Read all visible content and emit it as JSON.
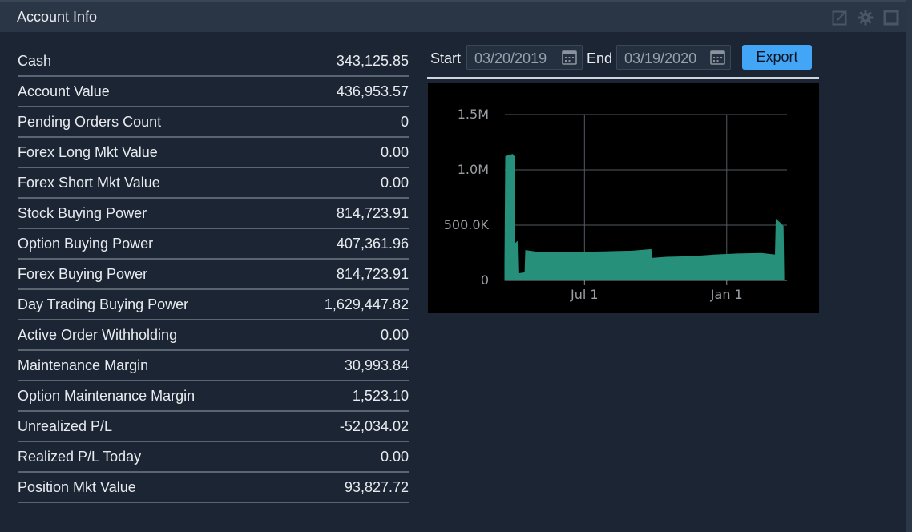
{
  "window": {
    "title": "Account Info",
    "icons": [
      "popout-icon",
      "settings-icon",
      "maximize-icon"
    ]
  },
  "account_rows": [
    {
      "label": "Cash",
      "value": "343,125.85"
    },
    {
      "label": "Account Value",
      "value": "436,953.57"
    },
    {
      "label": "Pending Orders Count",
      "value": "0"
    },
    {
      "label": "Forex Long Mkt Value",
      "value": "0.00"
    },
    {
      "label": "Forex Short Mkt Value",
      "value": "0.00"
    },
    {
      "label": "Stock Buying Power",
      "value": "814,723.91"
    },
    {
      "label": "Option Buying Power",
      "value": "407,361.96"
    },
    {
      "label": "Forex Buying Power",
      "value": "814,723.91"
    },
    {
      "label": "Day Trading Buying Power",
      "value": "1,629,447.82"
    },
    {
      "label": "Active Order Withholding",
      "value": "0.00"
    },
    {
      "label": "Maintenance Margin",
      "value": "30,993.84"
    },
    {
      "label": "Option Maintenance Margin",
      "value": "1,523.10"
    },
    {
      "label": "Unrealized P/L",
      "value": "-52,034.02"
    },
    {
      "label": "Realized P/L Today",
      "value": "0.00"
    },
    {
      "label": "Position Mkt Value",
      "value": "93,827.72"
    }
  ],
  "date_range": {
    "start_label": "Start",
    "start_value": "03/20/2019",
    "end_label": "End",
    "end_value": "03/19/2020",
    "export_label": "Export"
  },
  "colors": {
    "accent": "#42a5f5",
    "area_fill": "#26907a",
    "background": "#1c2533"
  },
  "chart_data": {
    "type": "area",
    "title": "",
    "xlabel": "",
    "ylabel": "",
    "ylim": [
      0,
      1500000
    ],
    "xlim": [
      "2019-03-20",
      "2020-03-19"
    ],
    "y_ticks": [
      "0",
      "500.0K",
      "1.0M",
      "1.5M"
    ],
    "y_tick_values": [
      0,
      500000,
      1000000,
      1500000
    ],
    "x_ticks": [
      "Jul 1",
      "Jan 1"
    ],
    "x_tick_values": [
      "2019-07-01",
      "2020-01-01"
    ],
    "grid": true,
    "series": [
      {
        "points": [
          [
            "2019-03-20",
            150000
          ],
          [
            "2019-03-21",
            1120000
          ],
          [
            "2019-03-30",
            1140000
          ],
          [
            "2019-04-01",
            1120000
          ],
          [
            "2019-04-02",
            330000
          ],
          [
            "2019-04-05",
            350000
          ],
          [
            "2019-04-06",
            60000
          ],
          [
            "2019-04-15",
            70000
          ],
          [
            "2019-04-16",
            270000
          ],
          [
            "2019-05-01",
            255000
          ],
          [
            "2019-06-01",
            250000
          ],
          [
            "2019-07-01",
            255000
          ],
          [
            "2019-08-01",
            260000
          ],
          [
            "2019-09-01",
            265000
          ],
          [
            "2019-09-25",
            280000
          ],
          [
            "2019-09-26",
            200000
          ],
          [
            "2019-10-15",
            210000
          ],
          [
            "2019-11-15",
            215000
          ],
          [
            "2019-12-15",
            230000
          ],
          [
            "2020-01-15",
            240000
          ],
          [
            "2020-02-15",
            245000
          ],
          [
            "2020-03-04",
            230000
          ],
          [
            "2020-03-05",
            550000
          ],
          [
            "2020-03-10",
            520000
          ],
          [
            "2020-03-14",
            490000
          ],
          [
            "2020-03-15",
            40000
          ]
        ]
      }
    ]
  }
}
